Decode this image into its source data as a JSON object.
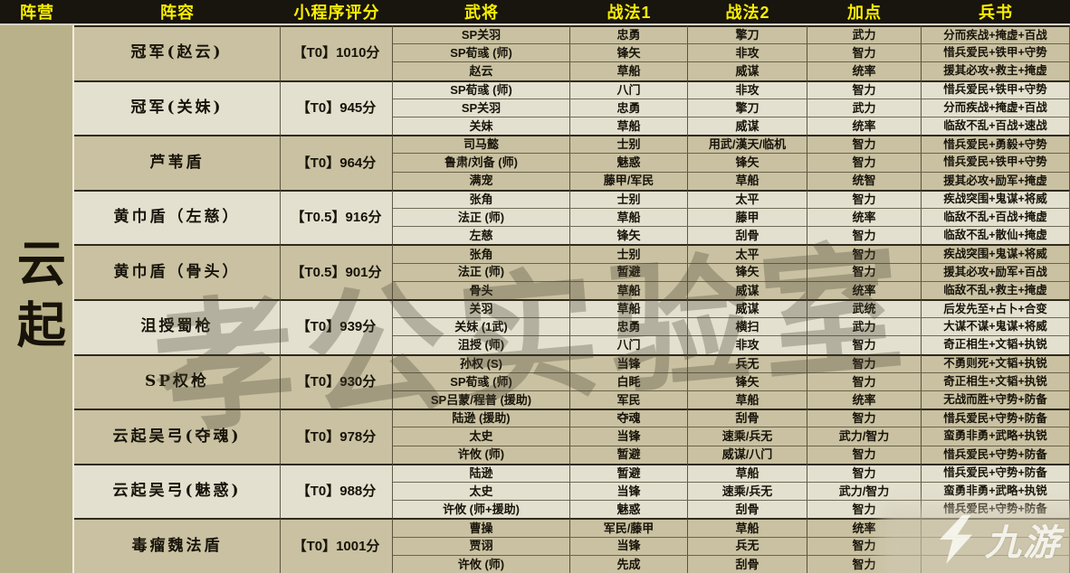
{
  "page": {
    "faction": "云起"
  },
  "table": {
    "columns": [
      "阵营",
      "阵容",
      "小程序评分",
      "武将",
      "战法1",
      "战法2",
      "加点",
      "兵书"
    ],
    "groups": [
      {
        "name": "冠军(赵云)",
        "score": "【T0】1010分",
        "tone": "tan",
        "members": [
          {
            "general": "SP关羽",
            "tactic1": "忠勇",
            "tactic2": "擎刀",
            "points": "武力",
            "books": "分而疾战+掩虚+百战"
          },
          {
            "general": "SP荀彧 (师)",
            "tactic1": "锋矢",
            "tactic2": "非攻",
            "points": "智力",
            "books": "惜兵爱民+铁甲+守势"
          },
          {
            "general": "赵云",
            "tactic1": "草船",
            "tactic2": "威谋",
            "points": "统率",
            "books": "援其必攻+救主+掩虚"
          }
        ]
      },
      {
        "name": "冠军(关妹)",
        "score": "【T0】945分",
        "tone": "cream",
        "members": [
          {
            "general": "SP荀彧 (师)",
            "tactic1": "八门",
            "tactic2": "非攻",
            "points": "智力",
            "books": "惜兵爱民+铁甲+守势"
          },
          {
            "general": "SP关羽",
            "tactic1": "忠勇",
            "tactic2": "擎刀",
            "points": "武力",
            "books": "分而疾战+掩虚+百战"
          },
          {
            "general": "关妹",
            "tactic1": "草船",
            "tactic2": "威谋",
            "points": "统率",
            "books": "临敌不乱+百战+速战"
          }
        ]
      },
      {
        "name": "芦苇盾",
        "score": "【T0】964分",
        "tone": "tan",
        "members": [
          {
            "general": "司马懿",
            "tactic1": "士别",
            "tactic2": "用武/漢天/临机",
            "points": "智力",
            "books": "惜兵爱民+勇毅+守势"
          },
          {
            "general": "鲁肃/刘备 (师)",
            "tactic1": "魅惑",
            "tactic2": "锋矢",
            "points": "智力",
            "books": "惜兵爱民+铁甲+守势"
          },
          {
            "general": "满宠",
            "tactic1": "藤甲/军民",
            "tactic2": "草船",
            "points": "统智",
            "books": "援其必攻+励军+掩虚"
          }
        ]
      },
      {
        "name": "黄巾盾（左慈）",
        "score": "【T0.5】916分",
        "tone": "cream",
        "members": [
          {
            "general": "张角",
            "tactic1": "士别",
            "tactic2": "太平",
            "points": "智力",
            "books": "疾战突围+鬼谋+将威"
          },
          {
            "general": "法正 (师)",
            "tactic1": "草船",
            "tactic2": "藤甲",
            "points": "统率",
            "books": "临敌不乱+百战+掩虚"
          },
          {
            "general": "左慈",
            "tactic1": "锋矢",
            "tactic2": "刮骨",
            "points": "智力",
            "books": "临敌不乱+散仙+掩虚"
          }
        ]
      },
      {
        "name": "黄巾盾（骨头）",
        "score": "【T0.5】901分",
        "tone": "tan",
        "members": [
          {
            "general": "张角",
            "tactic1": "士别",
            "tactic2": "太平",
            "points": "智力",
            "books": "疾战突围+鬼谋+将威"
          },
          {
            "general": "法正 (师)",
            "tactic1": "暂避",
            "tactic2": "锋矢",
            "points": "智力",
            "books": "援其必攻+励军+百战"
          },
          {
            "general": "骨头",
            "tactic1": "草船",
            "tactic2": "威谋",
            "points": "统率",
            "books": "临敌不乱+救主+掩虚"
          }
        ]
      },
      {
        "name": "沮授蜀枪",
        "score": "【T0】939分",
        "tone": "cream",
        "members": [
          {
            "general": "关羽",
            "tactic1": "草船",
            "tactic2": "威谋",
            "points": "武统",
            "books": "后发先至+占卜+合变"
          },
          {
            "general": "关妹 (1武)",
            "tactic1": "忠勇",
            "tactic2": "横扫",
            "points": "武力",
            "books": "大谋不谋+鬼谋+将威"
          },
          {
            "general": "沮授 (师)",
            "tactic1": "八门",
            "tactic2": "非攻",
            "points": "智力",
            "books": "奇正相生+文韬+执锐"
          }
        ]
      },
      {
        "name": "SP权枪",
        "score": "【T0】930分",
        "tone": "tan",
        "members": [
          {
            "general": "孙权 (S)",
            "tactic1": "当锋",
            "tactic2": "兵无",
            "points": "智力",
            "books": "不勇则死+文韬+执锐"
          },
          {
            "general": "SP荀彧 (师)",
            "tactic1": "白眊",
            "tactic2": "锋矢",
            "points": "智力",
            "books": "奇正相生+文韬+执锐"
          },
          {
            "general": "SP吕蒙/程普 (援助)",
            "tactic1": "军民",
            "tactic2": "草船",
            "points": "统率",
            "books": "无战而胜+守势+防备"
          }
        ]
      },
      {
        "name": "云起吴弓(夺魂)",
        "score": "【T0】978分",
        "tone": "tan",
        "members": [
          {
            "general": "陆逊 (援助)",
            "tactic1": "夺魂",
            "tactic2": "刮骨",
            "points": "智力",
            "books": "惜兵爱民+守势+防备"
          },
          {
            "general": "太史",
            "tactic1": "当锋",
            "tactic2": "速乘/兵无",
            "points": "武力/智力",
            "books": "蛮勇非勇+武略+执锐"
          },
          {
            "general": "许攸 (师)",
            "tactic1": "暂避",
            "tactic2": "威谋/八门",
            "points": "智力",
            "books": "惜兵爱民+守势+防备"
          }
        ]
      },
      {
        "name": "云起吴弓(魅惑)",
        "score": "【T0】988分",
        "tone": "cream",
        "members": [
          {
            "general": "陆逊",
            "tactic1": "暂避",
            "tactic2": "草船",
            "points": "智力",
            "books": "惜兵爱民+守势+防备"
          },
          {
            "general": "太史",
            "tactic1": "当锋",
            "tactic2": "速乘/兵无",
            "points": "武力/智力",
            "books": "蛮勇非勇+武略+执锐"
          },
          {
            "general": "许攸 (师+援助)",
            "tactic1": "魅惑",
            "tactic2": "刮骨",
            "points": "智力",
            "books": "惜兵爱民+守势+防备"
          }
        ]
      },
      {
        "name": "毒瘤魏法盾",
        "score": "【T0】1001分",
        "tone": "tan",
        "members": [
          {
            "general": "曹操",
            "tactic1": "军民/藤甲",
            "tactic2": "草船",
            "points": "统率",
            "books": ""
          },
          {
            "general": "贾诩",
            "tactic1": "当锋",
            "tactic2": "兵无",
            "points": "智力",
            "books": ""
          },
          {
            "general": "许攸 (师)",
            "tactic1": "先成",
            "tactic2": "刮骨",
            "points": "智力",
            "books": ""
          }
        ]
      }
    ]
  },
  "watermark": {
    "text": "孝公实验室"
  },
  "logo": {
    "brand": "九游"
  },
  "colors": {
    "headerBg": "#18140e",
    "headerText": "#f8ef00",
    "tan": "#c9c1a1",
    "cream": "#e3e0cf",
    "factionBg": "#b9b189"
  }
}
